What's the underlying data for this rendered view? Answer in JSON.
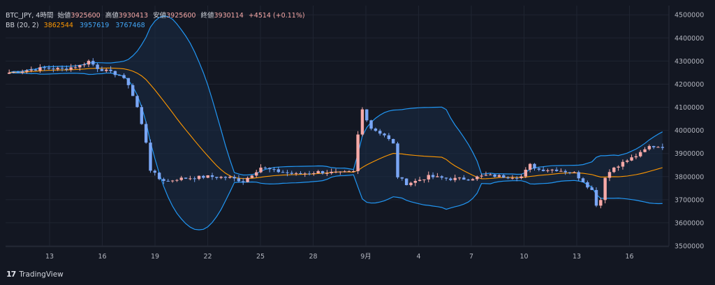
{
  "legend": {
    "symbol": "BTC_JPY, 4時間",
    "open_label": "始値",
    "open": "3925600",
    "high_label": "高値",
    "high": "3930413",
    "low_label": "安値",
    "low": "3925600",
    "close_label": "終値",
    "close": "3930114",
    "change": "+4514 (+0.11%)",
    "bb_label": "BB (20, 2)",
    "bb_mid": "3862544",
    "bb_upper": "3957619",
    "bb_lower": "3767468"
  },
  "brand": {
    "name": "TradingView"
  },
  "colors": {
    "background": "#131722",
    "grid": "#1f2431",
    "up_candle": "#f7a9a7",
    "down_candle": "#7aa6f5",
    "bb_mid": "#ff9800",
    "bb_band": "#2196f3",
    "bb_fill": "#1a2b45",
    "axis_text": "#b2b5be"
  },
  "chart_data": {
    "type": "candlestick",
    "title": "BTC_JPY, 4時間",
    "x_ticks": [
      "13",
      "16",
      "19",
      "22",
      "25",
      "28",
      "9月",
      "4",
      "7",
      "10",
      "13",
      "16"
    ],
    "y_ticks": [
      4500000,
      4400000,
      4300000,
      4200000,
      4100000,
      4000000,
      3900000,
      3800000,
      3700000,
      3600000,
      3500000
    ],
    "ylim": [
      3500000,
      4540000
    ],
    "grid": true,
    "indicator": {
      "name": "BB (20, 2)",
      "mid": 3862544,
      "upper": 3957619,
      "lower": 3767468
    },
    "price_path": [
      [
        0,
        4250000
      ],
      [
        4,
        4260000
      ],
      [
        8,
        4270000
      ],
      [
        12,
        4265000
      ],
      [
        16,
        4280000
      ],
      [
        18,
        4300000
      ],
      [
        20,
        4270000
      ],
      [
        23,
        4250000
      ],
      [
        25,
        4240000
      ],
      [
        27,
        4200000
      ],
      [
        29,
        4100000
      ],
      [
        31,
        3950000
      ],
      [
        32,
        3830000
      ],
      [
        34,
        3790000
      ],
      [
        36,
        3780000
      ],
      [
        38,
        3790000
      ],
      [
        45,
        3800000
      ],
      [
        50,
        3795000
      ],
      [
        53,
        3780000
      ],
      [
        55,
        3810000
      ],
      [
        57,
        3840000
      ],
      [
        60,
        3825000
      ],
      [
        65,
        3810000
      ],
      [
        70,
        3820000
      ],
      [
        75,
        3815000
      ],
      [
        78,
        3820000
      ],
      [
        79,
        3980000
      ],
      [
        80,
        4090000
      ],
      [
        81,
        4050000
      ],
      [
        82,
        4010000
      ],
      [
        85,
        3980000
      ],
      [
        87,
        3940000
      ],
      [
        88,
        3800000
      ],
      [
        90,
        3770000
      ],
      [
        92,
        3780000
      ],
      [
        95,
        3800000
      ],
      [
        100,
        3790000
      ],
      [
        104,
        3790000
      ],
      [
        108,
        3805000
      ],
      [
        112,
        3800000
      ],
      [
        116,
        3800000
      ],
      [
        118,
        3850000
      ],
      [
        120,
        3830000
      ],
      [
        124,
        3830000
      ],
      [
        128,
        3815000
      ],
      [
        130,
        3780000
      ],
      [
        132,
        3740000
      ],
      [
        133,
        3680000
      ],
      [
        134,
        3700000
      ],
      [
        135,
        3800000
      ],
      [
        137,
        3840000
      ],
      [
        140,
        3870000
      ],
      [
        143,
        3900000
      ],
      [
        145,
        3930000
      ],
      [
        148,
        3930000
      ]
    ]
  }
}
